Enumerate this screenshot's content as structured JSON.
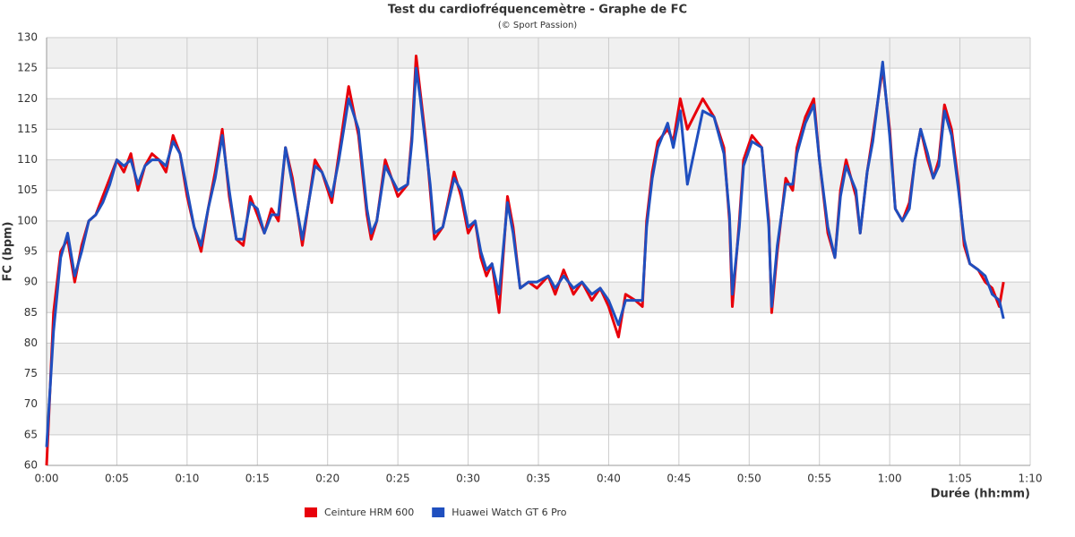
{
  "chart_data": {
    "type": "line",
    "title": "Test du cardiofréquencemètre - Graphe de FC",
    "subtitle": "(© Sport Passion)",
    "x_label": "Durée (hh:mm)",
    "y_label": "FC (bpm)",
    "xlim": [
      0,
      70
    ],
    "xticks": [
      {
        "value": 0,
        "label": "0:00"
      },
      {
        "value": 5,
        "label": "0:05"
      },
      {
        "value": 10,
        "label": "0:10"
      },
      {
        "value": 15,
        "label": "0:15"
      },
      {
        "value": 20,
        "label": "0:20"
      },
      {
        "value": 25,
        "label": "0:25"
      },
      {
        "value": 30,
        "label": "0:30"
      },
      {
        "value": 35,
        "label": "0:35"
      },
      {
        "value": 40,
        "label": "0:40"
      },
      {
        "value": 45,
        "label": "0:45"
      },
      {
        "value": 50,
        "label": "0:50"
      },
      {
        "value": 55,
        "label": "0:55"
      },
      {
        "value": 60,
        "label": "1:00"
      },
      {
        "value": 65,
        "label": "1:05"
      },
      {
        "value": 70,
        "label": "1:10"
      }
    ],
    "ylim": [
      60,
      130
    ],
    "yticks": [
      60,
      65,
      70,
      75,
      80,
      85,
      90,
      95,
      100,
      105,
      110,
      115,
      120,
      125,
      130
    ],
    "grid": true,
    "band_color": "#f0f0f0",
    "legend": "bottom",
    "x": [
      0,
      0.5,
      1,
      1.5,
      2,
      2.5,
      3,
      3.5,
      4,
      4.5,
      5,
      5.5,
      6,
      6.5,
      7,
      7.5,
      8,
      8.5,
      9,
      9.5,
      10,
      10.5,
      11,
      11.5,
      12,
      12.5,
      13,
      13.5,
      14,
      14.5,
      15,
      15.5,
      16,
      16.5,
      17,
      17.5,
      18.2,
      19.1,
      19.6,
      20.3,
      20.8,
      21.5,
      22.2,
      22.8,
      23.1,
      23.5,
      24.1,
      25,
      25.7,
      26,
      26.3,
      26.6,
      27,
      27.3,
      27.6,
      28.2,
      29,
      29.5,
      30,
      30.5,
      30.9,
      31.3,
      31.7,
      32.2,
      32.8,
      33.2,
      33.7,
      34.3,
      34.9,
      35.7,
      36.2,
      36.8,
      37.5,
      38.1,
      38.8,
      39.4,
      40,
      40.7,
      41.2,
      41.9,
      42.4,
      42.7,
      43.1,
      43.5,
      44.2,
      44.6,
      45.1,
      45.6,
      46.7,
      47.5,
      48.2,
      48.6,
      48.8,
      49.3,
      49.6,
      50.2,
      50.9,
      51.4,
      51.6,
      52,
      52.6,
      53.1,
      53.4,
      54,
      54.6,
      55,
      55.6,
      56.1,
      56.5,
      56.9,
      57.6,
      57.9,
      58.4,
      58.8,
      59.5,
      60,
      60.4,
      60.9,
      61.4,
      61.8,
      62.2,
      62.7,
      63.1,
      63.5,
      63.9,
      64.4,
      64.9,
      65.3,
      65.7,
      66.3,
      66.8,
      67.3,
      67.8,
      68.1
    ],
    "series": [
      {
        "name": "Ceinture HRM 600",
        "color": "#e8000b",
        "values": [
          60,
          85,
          95,
          97,
          90,
          96,
          100,
          101,
          104,
          107,
          110,
          108,
          111,
          105,
          109,
          111,
          110,
          108,
          114,
          111,
          104,
          99,
          95,
          102,
          108,
          115,
          104,
          97,
          96,
          104,
          101,
          98,
          102,
          100,
          112,
          107,
          96,
          110,
          108,
          103,
          111,
          122,
          114,
          101,
          97,
          100,
          110,
          104,
          106,
          114,
          127,
          121,
          113,
          105,
          97,
          99,
          108,
          104,
          98,
          100,
          94,
          91,
          93,
          85,
          104,
          99,
          89,
          90,
          89,
          91,
          88,
          92,
          88,
          90,
          87,
          89,
          86,
          81,
          88,
          87,
          86,
          100,
          108,
          113,
          115,
          113,
          120,
          115,
          120,
          117,
          112,
          100,
          86,
          100,
          110,
          114,
          112,
          100,
          85,
          95,
          107,
          105,
          112,
          117,
          120,
          110,
          98,
          94,
          105,
          110,
          104,
          98,
          108,
          114,
          125,
          115,
          102,
          100,
          103,
          110,
          115,
          110,
          107,
          110,
          119,
          115,
          106,
          96,
          93,
          92,
          90,
          89,
          86,
          90
        ]
      },
      {
        "name": "Huawei Watch GT 6 Pro",
        "color": "#1f4fbf",
        "values": [
          63,
          82,
          94,
          98,
          91,
          95,
          100,
          101,
          103,
          106,
          110,
          109,
          110,
          106,
          109,
          110,
          110,
          109,
          113,
          111,
          105,
          99,
          96,
          102,
          107,
          114,
          105,
          97,
          97,
          103,
          102,
          98,
          101,
          101,
          112,
          106,
          97,
          109,
          108,
          104,
          110,
          120,
          115,
          102,
          98,
          100,
          109,
          105,
          106,
          113,
          125,
          120,
          112,
          106,
          98,
          99,
          107,
          105,
          99,
          100,
          95,
          92,
          93,
          88,
          103,
          98,
          89,
          90,
          90,
          91,
          89,
          91,
          89,
          90,
          88,
          89,
          87,
          83,
          87,
          87,
          87,
          99,
          107,
          112,
          116,
          112,
          118,
          106,
          118,
          117,
          111,
          101,
          88,
          99,
          109,
          113,
          112,
          99,
          86,
          96,
          106,
          106,
          111,
          116,
          119,
          110,
          99,
          94,
          104,
          109,
          105,
          98,
          108,
          113,
          126,
          114,
          102,
          100,
          102,
          110,
          115,
          111,
          107,
          109,
          118,
          114,
          105,
          97,
          93,
          92,
          91,
          88,
          87,
          84
        ]
      }
    ]
  }
}
